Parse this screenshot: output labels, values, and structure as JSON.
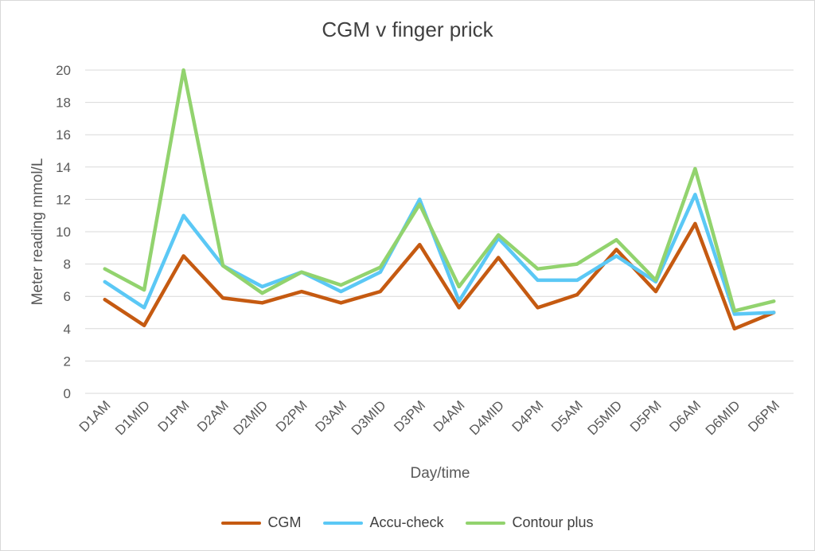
{
  "chart_data": {
    "type": "line",
    "title": "CGM v finger prick",
    "xlabel": "Day/time",
    "ylabel": "Meter reading mmol/L",
    "ylim": [
      0,
      20
    ],
    "yticks": [
      "0",
      "2",
      "4",
      "6",
      "8",
      "10",
      "12",
      "14",
      "16",
      "18",
      "20"
    ],
    "grid": true,
    "legend_position": "bottom",
    "categories": [
      "D1AM",
      "D1MID",
      "D1PM",
      "D2AM",
      "D2MID",
      "D2PM",
      "D3AM",
      "D3MID",
      "D3PM",
      "D4AM",
      "D4MID",
      "D4PM",
      "D5AM",
      "D5MID",
      "D5PM",
      "D6AM",
      "D6MID",
      "D6PM"
    ],
    "series": [
      {
        "name": "CGM",
        "color": "#c55a11",
        "values": [
          5.8,
          4.2,
          8.5,
          5.9,
          5.6,
          6.3,
          5.6,
          6.3,
          9.2,
          5.3,
          8.4,
          5.3,
          6.1,
          8.9,
          6.3,
          10.5,
          4.0,
          5.0
        ]
      },
      {
        "name": "Accu-check",
        "color": "#5bc8f5",
        "values": [
          6.9,
          5.3,
          11.0,
          7.9,
          6.6,
          7.5,
          6.3,
          7.5,
          12.0,
          5.7,
          9.6,
          7.0,
          7.0,
          8.5,
          6.9,
          12.3,
          4.9,
          5.0
        ]
      },
      {
        "name": "Contour plus",
        "color": "#92d36e",
        "values": [
          7.7,
          6.4,
          20.0,
          7.9,
          6.2,
          7.5,
          6.7,
          7.8,
          11.7,
          6.6,
          9.8,
          7.7,
          8.0,
          9.5,
          7.0,
          13.9,
          5.1,
          5.7
        ]
      }
    ]
  }
}
